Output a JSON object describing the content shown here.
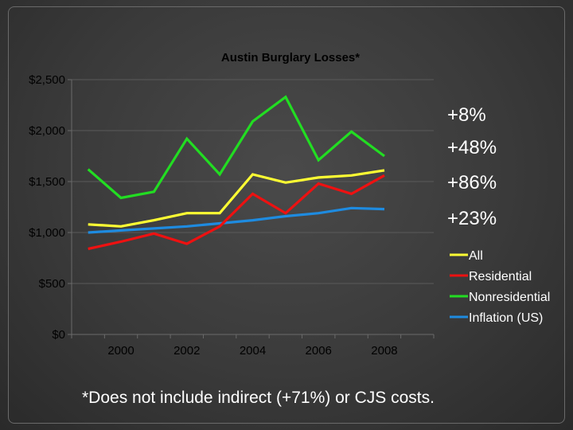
{
  "chart_data": {
    "type": "line",
    "title": "Austin Burglary Losses*",
    "x": [
      1999,
      2000,
      2001,
      2002,
      2003,
      2004,
      2005,
      2006,
      2007,
      2008,
      2009
    ],
    "x_tick_labels": [
      "2000",
      "2002",
      "2004",
      "2006",
      "2008"
    ],
    "x_tick_values": [
      2000,
      2002,
      2004,
      2006,
      2008
    ],
    "y_tick_labels": [
      "$0",
      "$500",
      "$1,000",
      "$1,500",
      "$2,000",
      "$2,500"
    ],
    "y_tick_values": [
      0,
      500,
      1000,
      1500,
      2000,
      2500
    ],
    "ylim": [
      0,
      2500
    ],
    "grid": true,
    "legend_position": "right",
    "series": [
      {
        "name": "All",
        "color": "#ffff33",
        "values": [
          1080,
          1060,
          1120,
          1190,
          1190,
          1570,
          1490,
          1540,
          1560,
          1610,
          null
        ]
      },
      {
        "name": "Residential",
        "color": "#ee1111",
        "values": [
          840,
          910,
          990,
          890,
          1060,
          1380,
          1190,
          1480,
          1380,
          1560,
          null
        ]
      },
      {
        "name": "Nonresidential",
        "color": "#22dd22",
        "values": [
          1620,
          1340,
          1400,
          1920,
          1570,
          2090,
          2330,
          1710,
          1990,
          1750,
          null
        ]
      },
      {
        "name": "Inflation (US)",
        "color": "#1e8be0",
        "values": [
          1000,
          1020,
          1040,
          1060,
          1090,
          1120,
          1160,
          1190,
          1240,
          1230,
          null
        ]
      }
    ],
    "annotations": [
      "+8%",
      "+48%",
      "+86%",
      "+23%"
    ]
  },
  "footnote": "*Does not include indirect (+71%) or CJS costs."
}
